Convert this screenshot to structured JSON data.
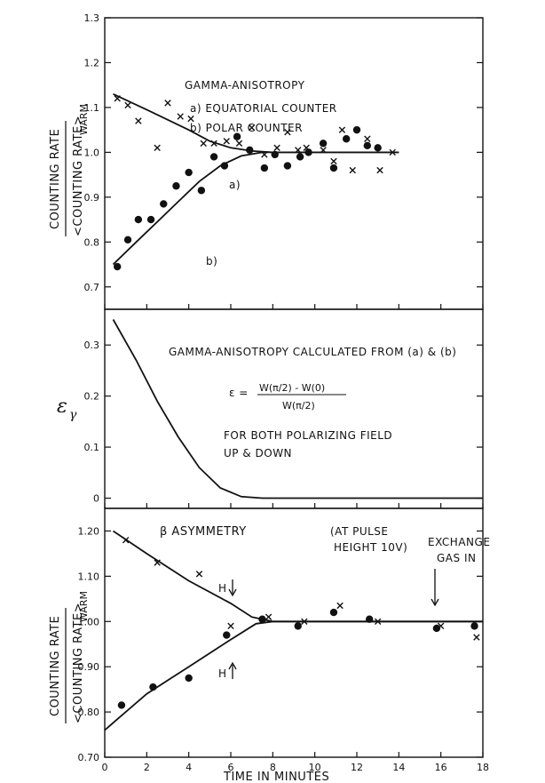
{
  "chart_data": [
    {
      "type": "scatter",
      "panel": "top",
      "ylabel_num": "COUNTING RATE",
      "ylabel_den": "<COUNTING RATE>",
      "ylabel_sub": "WARM",
      "ylim": [
        0.65,
        1.3
      ],
      "yticks": [
        "1.3",
        "1.2",
        "1.1",
        "1.0",
        "0.9",
        "0.8",
        "0.7"
      ],
      "ytick_values": [
        1.3,
        1.2,
        1.1,
        1.0,
        0.9,
        0.8,
        0.7
      ],
      "xlim": [
        0,
        18
      ],
      "annotations": {
        "title": "GAMMA-ANISOTROPY",
        "legend_a": "a) EQUATORIAL COUNTER",
        "legend_b": "b) POLAR COUNTER",
        "label_a": "a)",
        "label_b": "b)"
      },
      "series": [
        {
          "marker": "x",
          "points": [
            [
              0.6,
              1.12
            ],
            [
              1.1,
              1.105
            ],
            [
              1.6,
              1.07
            ],
            [
              2.5,
              1.01
            ],
            [
              3.0,
              1.11
            ],
            [
              3.6,
              1.08
            ],
            [
              4.1,
              1.075
            ],
            [
              4.7,
              1.02
            ],
            [
              5.2,
              1.02
            ],
            [
              5.8,
              1.025
            ],
            [
              6.4,
              1.02
            ],
            [
              7.0,
              1.055
            ],
            [
              7.6,
              0.995
            ],
            [
              8.2,
              1.01
            ],
            [
              8.7,
              1.045
            ],
            [
              9.2,
              1.005
            ],
            [
              9.6,
              1.01
            ],
            [
              10.4,
              1.005
            ],
            [
              10.9,
              0.98
            ],
            [
              11.3,
              1.05
            ],
            [
              11.8,
              0.96
            ],
            [
              12.5,
              1.03
            ],
            [
              13.1,
              0.96
            ],
            [
              13.7,
              1.0
            ]
          ]
        },
        {
          "marker": "dot",
          "points": [
            [
              0.6,
              0.745
            ],
            [
              1.1,
              0.805
            ],
            [
              1.6,
              0.85
            ],
            [
              2.2,
              0.85
            ],
            [
              2.8,
              0.885
            ],
            [
              3.4,
              0.925
            ],
            [
              4.0,
              0.955
            ],
            [
              4.6,
              0.915
            ],
            [
              5.2,
              0.99
            ],
            [
              5.7,
              0.97
            ],
            [
              6.3,
              1.035
            ],
            [
              6.9,
              1.005
            ],
            [
              7.6,
              0.965
            ],
            [
              8.1,
              0.995
            ],
            [
              8.7,
              0.97
            ],
            [
              9.3,
              0.99
            ],
            [
              9.7,
              1.0
            ],
            [
              10.4,
              1.02
            ],
            [
              10.9,
              0.965
            ],
            [
              11.5,
              1.03
            ],
            [
              12.0,
              1.05
            ],
            [
              12.5,
              1.015
            ],
            [
              13.0,
              1.01
            ]
          ]
        }
      ],
      "curves": [
        {
          "name": "a)",
          "points": [
            [
              0.4,
              1.13
            ],
            [
              2.0,
              1.095
            ],
            [
              4.0,
              1.05
            ],
            [
              5.0,
              1.025
            ],
            [
              6.0,
              1.01
            ],
            [
              7.0,
              1.003
            ],
            [
              8.0,
              1.0
            ],
            [
              14.0,
              1.0
            ]
          ]
        },
        {
          "name": "b)",
          "points": [
            [
              0.4,
              0.75
            ],
            [
              1.5,
              0.8
            ],
            [
              2.5,
              0.845
            ],
            [
              3.5,
              0.89
            ],
            [
              4.5,
              0.935
            ],
            [
              5.5,
              0.97
            ],
            [
              6.5,
              0.992
            ],
            [
              7.5,
              1.0
            ],
            [
              14.0,
              1.0
            ]
          ]
        }
      ]
    },
    {
      "type": "line",
      "panel": "middle",
      "ylabel": "ε",
      "ylabel_sub": "γ",
      "ylim": [
        -0.02,
        0.37
      ],
      "yticks": [
        "0.3",
        "0.2",
        "0.1",
        "0"
      ],
      "ytick_values": [
        0.3,
        0.2,
        0.1,
        0.0
      ],
      "xlim": [
        0,
        18
      ],
      "annotations": {
        "title": "GAMMA-ANISOTROPY CALCULATED FROM (a) & (b)",
        "eq_lhs": "ε =",
        "eq_num": "W(π/2) - W(0)",
        "eq_den": "W(π/2)",
        "note1": "FOR BOTH POLARIZING FIELD",
        "note2": "UP & DOWN"
      },
      "series": [
        {
          "points": [
            [
              0.4,
              0.35
            ],
            [
              1.5,
              0.27
            ],
            [
              2.5,
              0.19
            ],
            [
              3.5,
              0.12
            ],
            [
              4.5,
              0.06
            ],
            [
              5.5,
              0.02
            ],
            [
              6.5,
              0.003
            ],
            [
              7.5,
              0.0
            ],
            [
              18.0,
              0.0
            ]
          ]
        }
      ]
    },
    {
      "type": "scatter",
      "panel": "bottom",
      "xlabel": "TIME IN MINUTES",
      "ylabel_num": "COUNTING RATE",
      "ylabel_den": "<COUNTING RATE>",
      "ylabel_sub": "WARM",
      "ylim": [
        0.7,
        1.25
      ],
      "yticks": [
        "1.20",
        "1.10",
        "1.00",
        "0.90",
        "0.80",
        "0.70"
      ],
      "ytick_values": [
        1.2,
        1.1,
        1.0,
        0.9,
        0.8,
        0.7
      ],
      "xlim": [
        0,
        18
      ],
      "xticks": [
        "0",
        "2",
        "4",
        "6",
        "8",
        "10",
        "12",
        "14",
        "16",
        "18"
      ],
      "xtick_values": [
        0,
        2,
        4,
        6,
        8,
        10,
        12,
        14,
        16,
        18
      ],
      "annotations": {
        "title": "β ASYMMETRY",
        "pulse1": "(AT PULSE",
        "pulse2": "HEIGHT 10V)",
        "h_down": "H",
        "h_up": "H",
        "exch1": "EXCHANGE",
        "exch2": "GAS IN"
      },
      "series": [
        {
          "marker": "x",
          "points": [
            [
              1.0,
              1.18
            ],
            [
              2.5,
              1.13
            ],
            [
              4.5,
              1.105
            ],
            [
              6.0,
              0.99
            ],
            [
              7.8,
              1.01
            ],
            [
              9.5,
              1.0
            ],
            [
              11.2,
              1.035
            ],
            [
              13.0,
              1.0
            ],
            [
              16.0,
              0.99
            ],
            [
              17.7,
              0.965
            ]
          ]
        },
        {
          "marker": "dot",
          "points": [
            [
              0.8,
              0.815
            ],
            [
              2.3,
              0.855
            ],
            [
              4.0,
              0.875
            ],
            [
              5.8,
              0.97
            ],
            [
              7.5,
              1.005
            ],
            [
              9.2,
              0.99
            ],
            [
              10.9,
              1.02
            ],
            [
              12.6,
              1.005
            ],
            [
              15.8,
              0.985
            ],
            [
              17.6,
              0.99
            ]
          ]
        }
      ],
      "curves": [
        {
          "points": [
            [
              0.4,
              1.2
            ],
            [
              2.0,
              1.15
            ],
            [
              4.0,
              1.09
            ],
            [
              6.0,
              1.04
            ],
            [
              7.0,
              1.01
            ],
            [
              8.0,
              1.0
            ],
            [
              18.0,
              1.0
            ]
          ]
        },
        {
          "points": [
            [
              0.0,
              0.76
            ],
            [
              2.0,
              0.84
            ],
            [
              4.0,
              0.9
            ],
            [
              6.0,
              0.96
            ],
            [
              7.2,
              0.995
            ],
            [
              8.0,
              1.0
            ],
            [
              18.0,
              1.0
            ]
          ]
        }
      ]
    }
  ]
}
